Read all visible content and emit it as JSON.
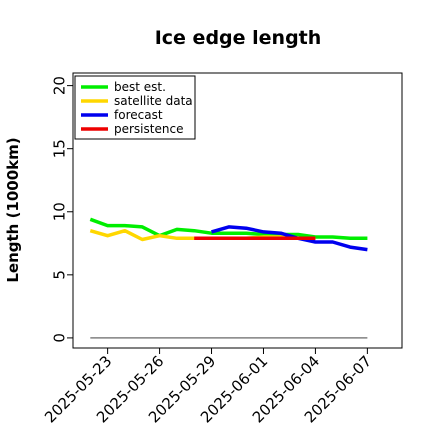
{
  "chart_data": {
    "type": "line",
    "title": "Ice edge length",
    "xlabel": "",
    "ylabel": "Length (1000km)",
    "xlim": [
      "2025-05-21",
      "2025-06-09"
    ],
    "ylim": [
      -0.8,
      21
    ],
    "yticks": [
      0,
      5,
      10,
      15,
      20
    ],
    "xticks": [
      "2025-05-23",
      "2025-05-26",
      "2025-05-29",
      "2025-06-01",
      "2025-06-04",
      "2025-06-07"
    ],
    "highlight_tick": "2025-05-29",
    "highlight_color": "#228B22",
    "grid": false,
    "legend_position": "upper-left",
    "baseline": {
      "y": 0,
      "color": "#808080"
    },
    "series": [
      {
        "name": "best est.",
        "color": "#00ee00",
        "x": [
          "2025-05-22",
          "2025-05-23",
          "2025-05-24",
          "2025-05-25",
          "2025-05-26",
          "2025-05-27",
          "2025-05-28",
          "2025-05-29",
          "2025-05-30",
          "2025-05-31",
          "2025-06-01",
          "2025-06-02",
          "2025-06-03",
          "2025-06-04",
          "2025-06-05",
          "2025-06-06",
          "2025-06-07"
        ],
        "y": [
          9.4,
          8.9,
          8.9,
          8.8,
          8.1,
          8.6,
          8.5,
          8.3,
          8.3,
          8.3,
          8.2,
          8.2,
          8.2,
          8.0,
          8.0,
          7.9,
          7.9
        ]
      },
      {
        "name": "satellite data",
        "color": "#ffd700",
        "x": [
          "2025-05-22",
          "2025-05-23",
          "2025-05-24",
          "2025-05-25",
          "2025-05-26",
          "2025-05-27",
          "2025-05-28",
          "2025-05-29",
          "2025-05-30",
          "2025-05-31",
          "2025-06-01",
          "2025-06-02",
          "2025-06-03",
          "2025-06-04"
        ],
        "y": [
          8.5,
          8.1,
          8.5,
          7.8,
          8.1,
          7.9,
          7.9,
          7.9,
          7.9,
          7.9,
          8.0,
          8.0,
          7.9,
          7.9
        ]
      },
      {
        "name": "forecast",
        "color": "#0000ee",
        "x": [
          "2025-05-29",
          "2025-05-30",
          "2025-05-31",
          "2025-06-01",
          "2025-06-02",
          "2025-06-03",
          "2025-06-04",
          "2025-06-05",
          "2025-06-06",
          "2025-06-07"
        ],
        "y": [
          8.4,
          8.8,
          8.7,
          8.4,
          8.3,
          7.9,
          7.6,
          7.6,
          7.2,
          7.0
        ]
      },
      {
        "name": "persistence",
        "color": "#ee0000",
        "x": [
          "2025-05-28",
          "2025-06-04"
        ],
        "y": [
          7.9,
          7.9
        ]
      }
    ]
  }
}
